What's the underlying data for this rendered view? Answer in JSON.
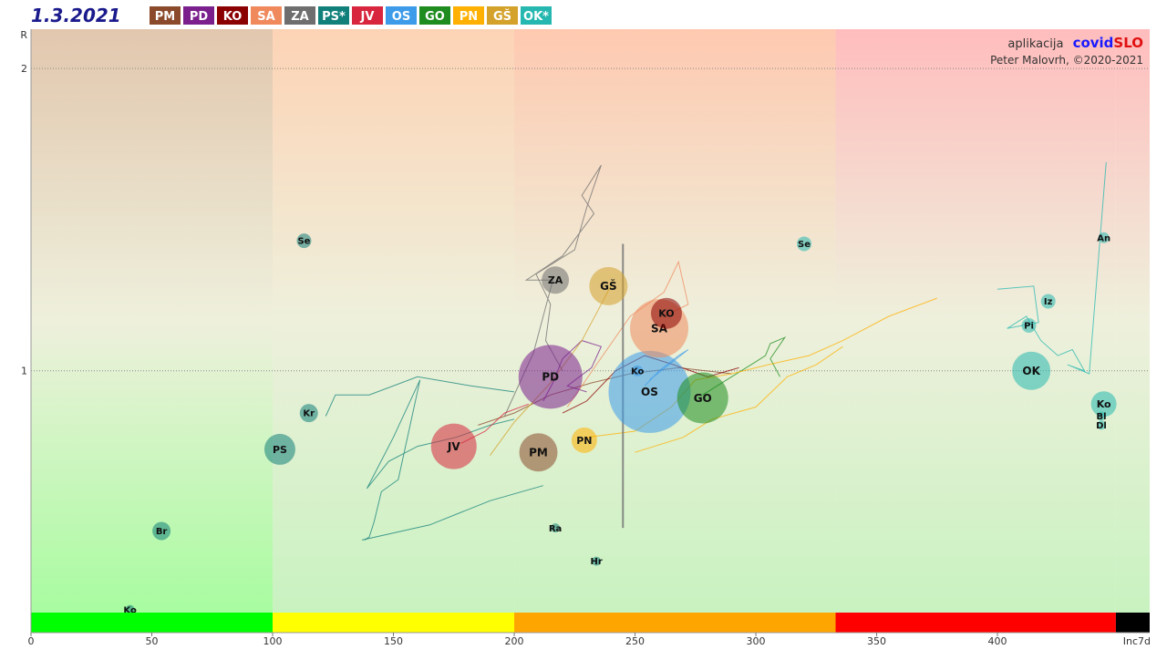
{
  "header": {
    "date": "1.3.2021",
    "legend": [
      {
        "label": "PM",
        "color": "#8B4A2B"
      },
      {
        "label": "PD",
        "color": "#7A1F8C"
      },
      {
        "label": "KO",
        "color": "#8B0000"
      },
      {
        "label": "SA",
        "color": "#F08A5D"
      },
      {
        "label": "ZA",
        "color": "#6E6E6E"
      },
      {
        "label": "PS*",
        "color": "#12807A"
      },
      {
        "label": "JV",
        "color": "#D7263D"
      },
      {
        "label": "OS",
        "color": "#3D9BE9"
      },
      {
        "label": "GO",
        "color": "#1E8C1E"
      },
      {
        "label": "PN",
        "color": "#FFB000"
      },
      {
        "label": "GŠ",
        "color": "#D4A12A"
      },
      {
        "label": "OK*",
        "color": "#26B8B0"
      }
    ]
  },
  "credit": {
    "line1_prefix": "aplikacija",
    "brand_a": "covid",
    "brand_b": "SLO",
    "line2": "Peter Malovrh, ©2020-2021"
  },
  "chart_data": {
    "type": "scatter",
    "xlabel": "Inc7d",
    "ylabel": "R",
    "xlim": [
      0,
      463
    ],
    "ylim": [
      0.2,
      2.13
    ],
    "x_ticks": [
      0,
      50,
      100,
      150,
      200,
      250,
      300,
      350,
      400
    ],
    "x_tick_labels": [
      "0",
      "50",
      "100",
      "150",
      "200",
      "250",
      "300",
      "350",
      "400"
    ],
    "y_ticks": [
      1,
      2
    ],
    "y_tick_labels": [
      "1",
      "2"
    ],
    "zones": [
      {
        "from": 0,
        "to": 100,
        "color": "#00FF00"
      },
      {
        "from": 100,
        "to": 200,
        "color": "#FFFF00"
      },
      {
        "from": 200,
        "to": 333,
        "color": "#FFA500"
      },
      {
        "from": 333,
        "to": 449,
        "color": "#FF0000"
      },
      {
        "from": 449,
        "to": 463,
        "color": "#000000"
      }
    ],
    "reference_line": {
      "x": 245,
      "y0": 0.48,
      "y1": 1.42
    },
    "bubbles": [
      {
        "label": "OS",
        "x": 256,
        "y": 0.93,
        "r": 45,
        "color": "#3D9BE9"
      },
      {
        "label": "PD",
        "x": 215,
        "y": 0.98,
        "r": 35,
        "color": "#7A1F8C"
      },
      {
        "label": "SA",
        "x": 260,
        "y": 1.14,
        "r": 32,
        "color": "#F08A5D"
      },
      {
        "label": "GO",
        "x": 278,
        "y": 0.91,
        "r": 28,
        "color": "#1E8C1E"
      },
      {
        "label": "JV",
        "x": 175,
        "y": 0.75,
        "r": 25,
        "color": "#D7263D"
      },
      {
        "label": "PM",
        "x": 210,
        "y": 0.73,
        "r": 21,
        "color": "#8B4A2B"
      },
      {
        "label": "GŠ",
        "x": 239,
        "y": 1.28,
        "r": 21,
        "color": "#D4A12A"
      },
      {
        "label": "OK",
        "x": 414,
        "y": 1.0,
        "r": 21,
        "color": "#26B8B0"
      },
      {
        "label": "PS",
        "x": 103,
        "y": 0.74,
        "r": 17,
        "color": "#12807A"
      },
      {
        "label": "KO",
        "x": 263,
        "y": 1.19,
        "r": 17,
        "color": "#8B0000"
      },
      {
        "label": "ZA",
        "x": 217,
        "y": 1.3,
        "r": 15,
        "color": "#6E6E6E"
      },
      {
        "label": "PN",
        "x": 229,
        "y": 0.77,
        "r": 14,
        "color": "#FFB000"
      },
      {
        "label": "Ko",
        "x": 444,
        "y": 0.89,
        "r": 14,
        "color": "#26B8B0"
      },
      {
        "label": "Br",
        "x": 54,
        "y": 0.47,
        "r": 10,
        "color": "#12807A"
      },
      {
        "label": "Kr",
        "x": 115,
        "y": 0.86,
        "r": 10,
        "color": "#12807A"
      },
      {
        "label": "Se",
        "x": 113,
        "y": 1.43,
        "r": 8,
        "color": "#12807A"
      },
      {
        "label": "Se",
        "x": 320,
        "y": 1.42,
        "r": 8,
        "color": "#26B8B0"
      },
      {
        "label": "Iz",
        "x": 421,
        "y": 1.23,
        "r": 8,
        "color": "#26B8B0"
      },
      {
        "label": "Pi",
        "x": 413,
        "y": 1.15,
        "r": 8,
        "color": "#26B8B0"
      },
      {
        "label": "An",
        "x": 444,
        "y": 1.44,
        "r": 6,
        "color": "#26B8B0"
      },
      {
        "label": "Ko",
        "x": 251,
        "y": 1.0,
        "r": 6,
        "color": "#3D9BE9"
      },
      {
        "label": "Ra",
        "x": 217,
        "y": 0.48,
        "r": 5,
        "color": "#12807A"
      },
      {
        "label": "Hr",
        "x": 234,
        "y": 0.37,
        "r": 5,
        "color": "#12807A"
      },
      {
        "label": "Ko",
        "x": 41,
        "y": 0.21,
        "r": 5,
        "color": "#12807A"
      },
      {
        "label": "Bl",
        "x": 443,
        "y": 0.85,
        "r": 5,
        "color": "#26B8B0"
      },
      {
        "label": "Dl",
        "x": 443,
        "y": 0.82,
        "r": 5,
        "color": "#26B8B0"
      }
    ],
    "trails": [
      {
        "color": "#12807A",
        "points": [
          [
            138,
            0.44
          ],
          [
            140,
            0.45
          ],
          [
            142,
            0.5
          ],
          [
            145,
            0.6
          ],
          [
            152,
            0.64
          ],
          [
            161,
            0.97
          ],
          [
            150,
            0.78
          ],
          [
            139,
            0.61
          ],
          [
            148,
            0.7
          ],
          [
            160,
            0.75
          ],
          [
            176,
            0.78
          ],
          [
            190,
            0.82
          ],
          [
            200,
            0.84
          ]
        ]
      },
      {
        "color": "#12807A",
        "points": [
          [
            122,
            0.85
          ],
          [
            126,
            0.92
          ],
          [
            140,
            0.92
          ],
          [
            160,
            0.98
          ],
          [
            182,
            0.95
          ],
          [
            200,
            0.93
          ]
        ]
      },
      {
        "color": "#12807A",
        "points": [
          [
            137,
            0.44
          ],
          [
            165,
            0.49
          ],
          [
            190,
            0.57
          ],
          [
            212,
            0.62
          ]
        ]
      },
      {
        "color": "#26B8B0",
        "points": [
          [
            400,
            1.27
          ],
          [
            415,
            1.28
          ],
          [
            417,
            1.16
          ],
          [
            404,
            1.14
          ],
          [
            412,
            1.18
          ],
          [
            418,
            1.1
          ],
          [
            425,
            1.05
          ],
          [
            431,
            1.07
          ],
          [
            436,
            1.0
          ],
          [
            429,
            1.02
          ],
          [
            438,
            0.99
          ],
          [
            445,
            1.69
          ]
        ]
      },
      {
        "color": "#8B4A2B",
        "points": [
          [
            185,
            0.82
          ],
          [
            200,
            0.86
          ],
          [
            215,
            0.92
          ],
          [
            232,
            0.96
          ],
          [
            248,
            0.99
          ],
          [
            268,
            1.01
          ],
          [
            290,
            0.99
          ]
        ]
      },
      {
        "color": "#7A1F8C",
        "points": [
          [
            212,
            0.9
          ],
          [
            216,
            0.96
          ],
          [
            220,
            1.04
          ],
          [
            228,
            1.1
          ],
          [
            236,
            1.08
          ],
          [
            232,
            1.01
          ],
          [
            222,
            0.95
          ],
          [
            230,
            0.93
          ]
        ]
      },
      {
        "color": "#8B0000",
        "points": [
          [
            220,
            0.86
          ],
          [
            230,
            0.9
          ],
          [
            242,
            1.0
          ],
          [
            254,
            1.05
          ],
          [
            266,
            1.02
          ],
          [
            280,
            0.98
          ],
          [
            293,
            1.01
          ]
        ]
      },
      {
        "color": "#F08A5D",
        "points": [
          [
            222,
            0.88
          ],
          [
            234,
            1.02
          ],
          [
            248,
            1.18
          ],
          [
            262,
            1.26
          ],
          [
            268,
            1.36
          ],
          [
            272,
            1.22
          ],
          [
            262,
            1.18
          ]
        ]
      },
      {
        "color": "#6E6E6E",
        "points": [
          [
            196,
            0.85
          ],
          [
            208,
            1.06
          ],
          [
            216,
            1.3
          ],
          [
            205,
            1.3
          ],
          [
            220,
            1.38
          ],
          [
            233,
            1.52
          ],
          [
            228,
            1.58
          ],
          [
            236,
            1.68
          ],
          [
            230,
            1.54
          ],
          [
            225,
            1.4
          ],
          [
            209,
            1.32
          ],
          [
            215,
            1.22
          ],
          [
            213,
            1.1
          ],
          [
            220,
            1.0
          ]
        ]
      },
      {
        "color": "#D7263D",
        "points": [
          [
            178,
            0.76
          ],
          [
            188,
            0.8
          ],
          [
            196,
            0.86
          ],
          [
            206,
            0.89
          ]
        ]
      },
      {
        "color": "#3D9BE9",
        "points": [
          [
            254,
            0.95
          ],
          [
            260,
            1.0
          ],
          [
            268,
            1.05
          ],
          [
            272,
            1.07
          ],
          [
            264,
            1.02
          ],
          [
            256,
            0.97
          ]
        ]
      },
      {
        "color": "#1E8C1E",
        "points": [
          [
            278,
            0.92
          ],
          [
            290,
            0.98
          ],
          [
            300,
            1.03
          ],
          [
            304,
            1.05
          ],
          [
            306,
            1.09
          ],
          [
            312,
            1.11
          ],
          [
            306,
            1.04
          ],
          [
            310,
            0.98
          ]
        ]
      },
      {
        "color": "#FFB000",
        "points": [
          [
            230,
            0.78
          ],
          [
            250,
            0.8
          ],
          [
            265,
            0.88
          ],
          [
            275,
            0.97
          ],
          [
            290,
            0.99
          ],
          [
            305,
            1.02
          ],
          [
            322,
            1.05
          ],
          [
            336,
            1.1
          ],
          [
            355,
            1.18
          ],
          [
            375,
            1.24
          ]
        ]
      },
      {
        "color": "#D4A12A",
        "points": [
          [
            190,
            0.72
          ],
          [
            200,
            0.83
          ],
          [
            215,
            0.96
          ],
          [
            228,
            1.1
          ],
          [
            236,
            1.22
          ],
          [
            240,
            1.28
          ]
        ]
      },
      {
        "color": "#FFB000",
        "points": [
          [
            250,
            0.73
          ],
          [
            270,
            0.78
          ],
          [
            282,
            0.84
          ],
          [
            300,
            0.88
          ],
          [
            313,
            0.98
          ],
          [
            325,
            1.02
          ],
          [
            336,
            1.08
          ]
        ]
      }
    ]
  }
}
